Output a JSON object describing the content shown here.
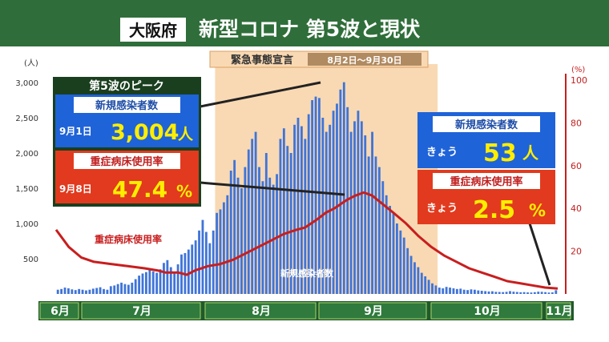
{
  "header": {
    "prefecture": "大阪府",
    "title": "新型コロナ 第5波と現状"
  },
  "emergency": {
    "label": "緊急事態宣言",
    "period": "8月2日〜9月30日"
  },
  "peak_panel": {
    "heading": "第5波のピーク",
    "infections_label": "新規感染者数",
    "infections_date": "9月1日",
    "infections_value": "3,004",
    "infections_unit": "人",
    "bed_label": "重症病床使用率",
    "bed_date": "9月8日",
    "bed_value": "47.4",
    "bed_unit": "%"
  },
  "today_panel": {
    "infections_label": "新規感染者数",
    "today_word": "きょう",
    "infections_value": "53",
    "infections_unit": "人",
    "bed_label": "重症病床使用率",
    "bed_today_word": "きょう",
    "bed_value": "2.5",
    "bed_unit": "%"
  },
  "series_labels": {
    "bed_rate": "重症病床使用率",
    "infections": "新規感染者数"
  },
  "colors": {
    "header_bg": "#2f6e3a",
    "bar": "#3f74d8",
    "line": "#c81e1e",
    "emergency_shade": "#f9d9b3",
    "month_bar": "#2f7a3c",
    "infection_box": "#1f63d8",
    "bed_box": "#e23a1e",
    "value_yellow": "#ffee00"
  },
  "chart_data": {
    "type": "bar",
    "title": "新型コロナ 第5波と現状",
    "left_axis": {
      "unit": "(人)",
      "ticks": [
        "500",
        "1,000",
        "1,500",
        "2,000",
        "2,500",
        "3,000"
      ],
      "ylim": [
        0,
        3000
      ]
    },
    "right_axis": {
      "unit": "(%)",
      "ticks": [
        "20",
        "40",
        "60",
        "80",
        "100"
      ],
      "ylim": [
        0,
        100
      ]
    },
    "months": [
      "6月",
      "7月",
      "8月",
      "9月",
      "10月",
      "11月"
    ],
    "series": [
      {
        "name": "新規感染者数",
        "kind": "bar",
        "axis": "left",
        "values": [
          60,
          70,
          90,
          80,
          65,
          55,
          70,
          60,
          50,
          60,
          75,
          85,
          95,
          70,
          60,
          110,
          120,
          140,
          160,
          140,
          130,
          160,
          210,
          260,
          290,
          310,
          350,
          320,
          300,
          350,
          440,
          480,
          380,
          310,
          420,
          560,
          580,
          630,
          700,
          760,
          900,
          1050,
          880,
          720,
          900,
          1150,
          1200,
          1300,
          1400,
          1750,
          1900,
          1650,
          1500,
          1800,
          2050,
          2200,
          2300,
          1800,
          1600,
          2000,
          1650,
          1550,
          1700,
          2200,
          2350,
          2100,
          2000,
          2400,
          2500,
          2380,
          2200,
          2550,
          2750,
          2800,
          2780,
          2500,
          2300,
          2400,
          2600,
          2700,
          2900,
          3004,
          2650,
          2300,
          2450,
          2600,
          2450,
          2250,
          1950,
          2300,
          1950,
          1800,
          1600,
          1400,
          1250,
          1150,
          1000,
          900,
          800,
          650,
          540,
          450,
          380,
          300,
          250,
          200,
          150,
          120,
          90,
          80,
          100,
          90,
          80,
          70,
          75,
          60,
          55,
          65,
          60,
          50,
          45,
          40,
          35,
          38,
          30,
          28,
          26,
          30,
          40,
          32,
          28,
          24,
          26,
          22,
          20,
          25,
          32,
          30,
          26,
          20,
          22,
          53
        ]
      },
      {
        "name": "重症病床使用率",
        "kind": "line",
        "axis": "right",
        "values": [
          [
            0,
            30
          ],
          [
            6,
            22
          ],
          [
            12,
            17
          ],
          [
            18,
            15
          ],
          [
            26,
            14
          ],
          [
            34,
            13
          ],
          [
            42,
            12
          ],
          [
            48,
            11
          ],
          [
            52,
            10
          ],
          [
            58,
            10
          ],
          [
            62,
            9
          ],
          [
            66,
            11
          ],
          [
            72,
            13
          ],
          [
            78,
            14
          ],
          [
            84,
            16
          ],
          [
            90,
            19
          ],
          [
            96,
            22
          ],
          [
            102,
            25
          ],
          [
            108,
            28
          ],
          [
            114,
            30
          ],
          [
            118,
            31
          ],
          [
            124,
            35
          ],
          [
            128,
            38
          ],
          [
            132,
            40
          ],
          [
            138,
            44
          ],
          [
            142,
            46
          ],
          [
            146,
            47.4
          ],
          [
            150,
            46
          ],
          [
            155,
            42
          ],
          [
            160,
            38
          ],
          [
            166,
            33
          ],
          [
            172,
            27
          ],
          [
            178,
            22
          ],
          [
            184,
            18
          ],
          [
            190,
            15
          ],
          [
            196,
            12
          ],
          [
            202,
            10
          ],
          [
            208,
            8
          ],
          [
            214,
            6
          ],
          [
            220,
            5
          ],
          [
            226,
            4
          ],
          [
            232,
            3
          ],
          [
            238,
            2.5
          ]
        ]
      }
    ]
  }
}
